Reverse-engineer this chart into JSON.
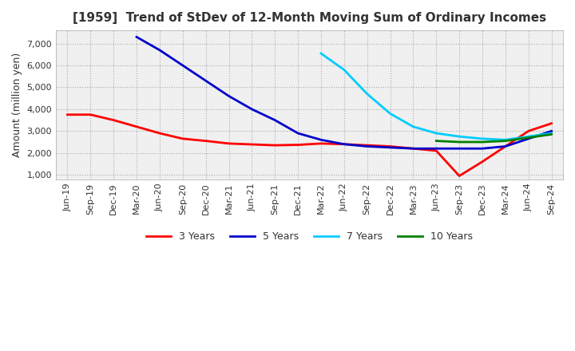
{
  "title": "[1959]  Trend of StDev of 12-Month Moving Sum of Ordinary Incomes",
  "ylabel": "Amount (million yen)",
  "ylim": [
    800,
    7600
  ],
  "yticks": [
    1000,
    2000,
    3000,
    4000,
    5000,
    6000,
    7000
  ],
  "background_color": "#ffffff",
  "plot_bg_color": "#f0f0f0",
  "grid_color": "#aaaaaa",
  "series": {
    "3 Years": {
      "color": "#ff0000",
      "data": [
        [
          "Jun-19",
          3750
        ],
        [
          "Sep-19",
          3750
        ],
        [
          "Dec-19",
          3500
        ],
        [
          "Mar-20",
          3200
        ],
        [
          "Jun-20",
          2900
        ],
        [
          "Sep-20",
          2650
        ],
        [
          "Dec-20",
          2550
        ],
        [
          "Mar-21",
          2430
        ],
        [
          "Jun-21",
          2390
        ],
        [
          "Sep-21",
          2350
        ],
        [
          "Dec-21",
          2370
        ],
        [
          "Mar-22",
          2430
        ],
        [
          "Jun-22",
          2400
        ],
        [
          "Sep-22",
          2350
        ],
        [
          "Dec-22",
          2300
        ],
        [
          "Mar-23",
          2200
        ],
        [
          "Jun-23",
          2100
        ],
        [
          "Sep-23",
          950
        ],
        [
          "Dec-23",
          1600
        ],
        [
          "Mar-24",
          2300
        ],
        [
          "Jun-24",
          3000
        ],
        [
          "Sep-24",
          3350
        ]
      ]
    },
    "5 Years": {
      "color": "#0000cc",
      "data": [
        [
          "Mar-20",
          7300
        ],
        [
          "Jun-20",
          6700
        ],
        [
          "Sep-20",
          6000
        ],
        [
          "Dec-20",
          5300
        ],
        [
          "Mar-21",
          4600
        ],
        [
          "Jun-21",
          4000
        ],
        [
          "Sep-21",
          3500
        ],
        [
          "Dec-21",
          2900
        ],
        [
          "Mar-22",
          2600
        ],
        [
          "Jun-22",
          2400
        ],
        [
          "Sep-22",
          2300
        ],
        [
          "Dec-22",
          2250
        ],
        [
          "Mar-23",
          2200
        ],
        [
          "Jun-23",
          2200
        ],
        [
          "Sep-23",
          2200
        ],
        [
          "Dec-23",
          2200
        ],
        [
          "Mar-24",
          2300
        ],
        [
          "Jun-24",
          2650
        ],
        [
          "Sep-24",
          3000
        ]
      ]
    },
    "7 Years": {
      "color": "#00ccff",
      "data": [
        [
          "Mar-22",
          6550
        ],
        [
          "Jun-22",
          5800
        ],
        [
          "Sep-22",
          4700
        ],
        [
          "Dec-22",
          3800
        ],
        [
          "Mar-23",
          3200
        ],
        [
          "Jun-23",
          2900
        ],
        [
          "Sep-23",
          2750
        ],
        [
          "Dec-23",
          2650
        ],
        [
          "Mar-24",
          2600
        ],
        [
          "Jun-24",
          2750
        ],
        [
          "Sep-24",
          2900
        ]
      ]
    },
    "10 Years": {
      "color": "#008000",
      "data": [
        [
          "Jun-23",
          2550
        ],
        [
          "Sep-23",
          2500
        ],
        [
          "Dec-23",
          2500
        ],
        [
          "Mar-24",
          2550
        ],
        [
          "Jun-24",
          2700
        ],
        [
          "Sep-24",
          2850
        ]
      ]
    }
  },
  "x_labels": [
    "Jun-19",
    "Sep-19",
    "Dec-19",
    "Mar-20",
    "Jun-20",
    "Sep-20",
    "Dec-20",
    "Mar-21",
    "Jun-21",
    "Sep-21",
    "Dec-21",
    "Mar-22",
    "Jun-22",
    "Sep-22",
    "Dec-22",
    "Mar-23",
    "Jun-23",
    "Sep-23",
    "Dec-23",
    "Mar-24",
    "Jun-24",
    "Sep-24"
  ],
  "title_fontsize": 11,
  "tick_fontsize": 8,
  "ylabel_fontsize": 9,
  "legend_fontsize": 9
}
